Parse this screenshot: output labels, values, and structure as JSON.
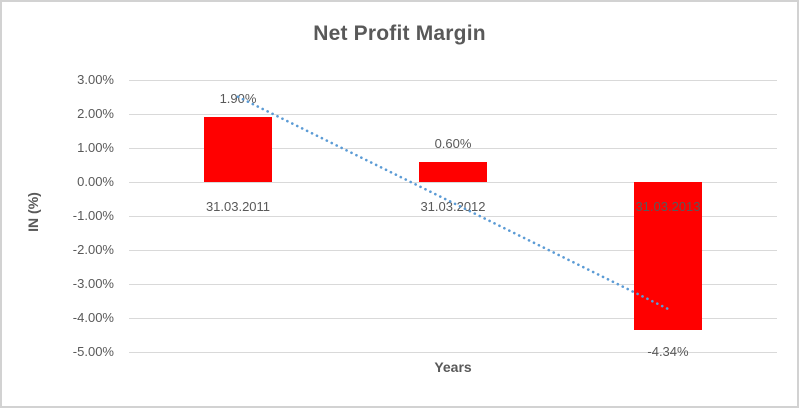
{
  "window": {
    "background": "#ffffff",
    "border_color": "#d2d2d2"
  },
  "chart_data": {
    "type": "bar",
    "title": "Net Profit Margin",
    "xlabel": "Years",
    "ylabel": "IN (%)",
    "categories": [
      "31.03.2011",
      "31.03.2012",
      "31.03.2013"
    ],
    "values": [
      1.9,
      0.6,
      -4.34
    ],
    "data_labels": [
      "1.90%",
      "0.60%",
      "-4.34%"
    ],
    "ytick_labels": [
      "3.00%",
      "2.00%",
      "1.00%",
      "0.00%",
      "-1.00%",
      "-2.00%",
      "-3.00%",
      "-4.00%",
      "-5.00%"
    ],
    "ytick_values": [
      3,
      2,
      1,
      0,
      -1,
      -2,
      -3,
      -4,
      -5
    ],
    "ylim": [
      -5,
      3
    ],
    "grid": true,
    "legend": "none",
    "bar_color": "#ff0000",
    "gridline_color": "#d9d9d9",
    "text_color": "#595959",
    "trendline": {
      "type": "linear",
      "style": "dotted",
      "color": "#5b9bd5"
    }
  }
}
